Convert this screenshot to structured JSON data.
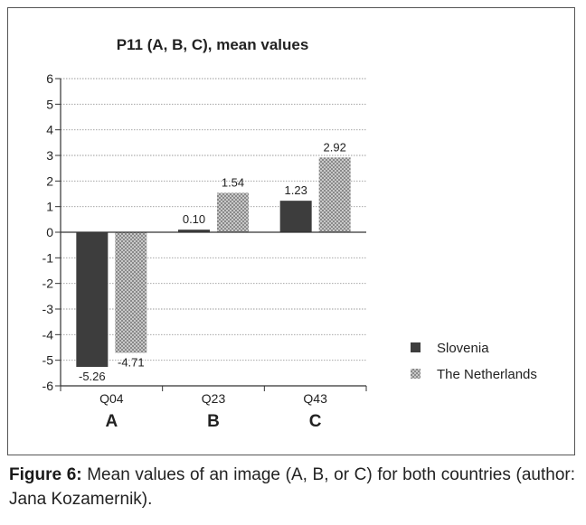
{
  "chart_data": {
    "type": "bar",
    "title": "P11 (A, B, C), mean values",
    "categories": [
      "Q04",
      "Q23",
      "Q43"
    ],
    "group_labels": [
      "A",
      "B",
      "C"
    ],
    "series": [
      {
        "name": "Slovenia",
        "values": [
          -5.26,
          0.1,
          1.23
        ],
        "labels": [
          "-5.26",
          "0.10",
          "1.23"
        ],
        "color": "#3d3d3d"
      },
      {
        "name": "The Netherlands",
        "values": [
          -4.71,
          1.54,
          2.92
        ],
        "labels": [
          "-4.71",
          "1.54",
          "2.92"
        ],
        "color": "#a8a8a8",
        "pattern": "checkered"
      }
    ],
    "ylim": [
      -6,
      6
    ],
    "yticks": [
      6,
      5,
      4,
      3,
      2,
      1,
      0,
      -1,
      -2,
      -3,
      -4,
      -5,
      -6
    ],
    "ytick_labels": [
      "6",
      "5",
      "4",
      "3",
      "2",
      "1",
      "0",
      "-1",
      "-2",
      "-3",
      "-4",
      "-5",
      "-6"
    ],
    "xlabel": "",
    "ylabel": "",
    "grid": "dotted horizontal",
    "legend_position": "right"
  },
  "caption": {
    "label": "Figure 6:",
    "text": " Mean values of an image (A, B, or C) for both countries (author: Jana Kozamernik)."
  }
}
